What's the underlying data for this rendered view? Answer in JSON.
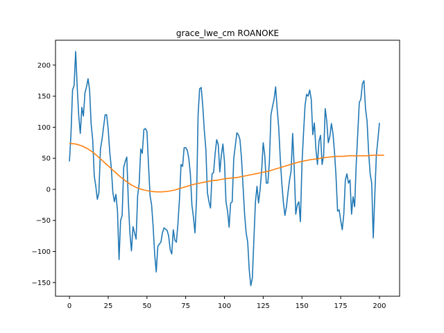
{
  "chart_data": {
    "type": "line",
    "title": "grace_lwe_cm ROANOKE",
    "xlabel": "",
    "ylabel": "",
    "xlim": [
      -9,
      213
    ],
    "ylim": [
      -172,
      240
    ],
    "xticks": [
      0,
      25,
      50,
      75,
      100,
      125,
      150,
      175,
      200
    ],
    "yticks": [
      -150,
      -100,
      -50,
      0,
      50,
      100,
      150,
      200
    ],
    "grid": false,
    "legend": "none",
    "series": [
      {
        "color": "#1f77b4",
        "points": [
          [
            0,
            45
          ],
          [
            1,
            90
          ],
          [
            2,
            160
          ],
          [
            3,
            167
          ],
          [
            4,
            222
          ],
          [
            5,
            165
          ],
          [
            6,
            118
          ],
          [
            7,
            90
          ],
          [
            8,
            132
          ],
          [
            9,
            118
          ],
          [
            10,
            155
          ],
          [
            11,
            165
          ],
          [
            12,
            178
          ],
          [
            13,
            160
          ],
          [
            14,
            105
          ],
          [
            15,
            80
          ],
          [
            16,
            22
          ],
          [
            17,
            5
          ],
          [
            18,
            -16
          ],
          [
            19,
            -5
          ],
          [
            20,
            65
          ],
          [
            21,
            80
          ],
          [
            22,
            100
          ],
          [
            23,
            120
          ],
          [
            24,
            120
          ],
          [
            25,
            97
          ],
          [
            26,
            60
          ],
          [
            27,
            35
          ],
          [
            28,
            -5
          ],
          [
            29,
            -20
          ],
          [
            30,
            -8
          ],
          [
            31,
            -35
          ],
          [
            32,
            -113
          ],
          [
            33,
            -50
          ],
          [
            34,
            -42
          ],
          [
            35,
            35
          ],
          [
            36,
            45
          ],
          [
            37,
            52
          ],
          [
            38,
            -20
          ],
          [
            39,
            -70
          ],
          [
            40,
            -99
          ],
          [
            41,
            -60
          ],
          [
            42,
            -70
          ],
          [
            43,
            -80
          ],
          [
            44,
            -10
          ],
          [
            45,
            10
          ],
          [
            46,
            65
          ],
          [
            47,
            58
          ],
          [
            48,
            96
          ],
          [
            49,
            98
          ],
          [
            50,
            93
          ],
          [
            51,
            40
          ],
          [
            52,
            -10
          ],
          [
            53,
            -25
          ],
          [
            54,
            -60
          ],
          [
            55,
            -105
          ],
          [
            56,
            -133
          ],
          [
            57,
            -92
          ],
          [
            58,
            -88
          ],
          [
            59,
            -85
          ],
          [
            60,
            -70
          ],
          [
            61,
            -62
          ],
          [
            62,
            -64
          ],
          [
            63,
            -66
          ],
          [
            64,
            -75
          ],
          [
            65,
            -97
          ],
          [
            66,
            -104
          ],
          [
            67,
            -65
          ],
          [
            68,
            -82
          ],
          [
            69,
            -85
          ],
          [
            70,
            -55
          ],
          [
            71,
            -15
          ],
          [
            72,
            40
          ],
          [
            73,
            37
          ],
          [
            74,
            67
          ],
          [
            75,
            67
          ],
          [
            76,
            63
          ],
          [
            77,
            50
          ],
          [
            78,
            25
          ],
          [
            79,
            -25
          ],
          [
            80,
            -45
          ],
          [
            81,
            -70
          ],
          [
            82,
            -15
          ],
          [
            83,
            120
          ],
          [
            84,
            162
          ],
          [
            85,
            164
          ],
          [
            86,
            135
          ],
          [
            87,
            95
          ],
          [
            88,
            65
          ],
          [
            89,
            -5
          ],
          [
            90,
            -20
          ],
          [
            91,
            -30
          ],
          [
            92,
            25
          ],
          [
            93,
            27
          ],
          [
            94,
            58
          ],
          [
            95,
            80
          ],
          [
            96,
            72
          ],
          [
            97,
            28
          ],
          [
            98,
            55
          ],
          [
            99,
            73
          ],
          [
            100,
            45
          ],
          [
            101,
            -20
          ],
          [
            102,
            -35
          ],
          [
            103,
            -61
          ],
          [
            104,
            -22
          ],
          [
            105,
            -20
          ],
          [
            106,
            50
          ],
          [
            107,
            70
          ],
          [
            108,
            91
          ],
          [
            109,
            88
          ],
          [
            110,
            80
          ],
          [
            111,
            50
          ],
          [
            112,
            5
          ],
          [
            113,
            -40
          ],
          [
            114,
            -70
          ],
          [
            115,
            -85
          ],
          [
            116,
            -130
          ],
          [
            117,
            -155
          ],
          [
            118,
            -143
          ],
          [
            119,
            -80
          ],
          [
            120,
            -20
          ],
          [
            121,
            5
          ],
          [
            122,
            -22
          ],
          [
            123,
            0
          ],
          [
            124,
            30
          ],
          [
            125,
            75
          ],
          [
            126,
            55
          ],
          [
            127,
            10
          ],
          [
            128,
            10
          ],
          [
            129,
            45
          ],
          [
            130,
            120
          ],
          [
            131,
            133
          ],
          [
            132,
            145
          ],
          [
            133,
            165
          ],
          [
            134,
            130
          ],
          [
            135,
            100
          ],
          [
            136,
            50
          ],
          [
            137,
            10
          ],
          [
            138,
            -20
          ],
          [
            139,
            -42
          ],
          [
            140,
            -28
          ],
          [
            141,
            -5
          ],
          [
            142,
            15
          ],
          [
            143,
            30
          ],
          [
            144,
            90
          ],
          [
            145,
            35
          ],
          [
            146,
            -40
          ],
          [
            147,
            -25
          ],
          [
            148,
            -20
          ],
          [
            149,
            -52
          ],
          [
            150,
            40
          ],
          [
            151,
            90
          ],
          [
            152,
            135
          ],
          [
            153,
            153
          ],
          [
            154,
            150
          ],
          [
            155,
            160
          ],
          [
            156,
            145
          ],
          [
            157,
            88
          ],
          [
            158,
            107
          ],
          [
            159,
            65
          ],
          [
            160,
            40
          ],
          [
            161,
            78
          ],
          [
            162,
            87
          ],
          [
            163,
            40
          ],
          [
            164,
            55
          ],
          [
            165,
            130
          ],
          [
            166,
            110
          ],
          [
            167,
            75
          ],
          [
            168,
            85
          ],
          [
            169,
            106
          ],
          [
            170,
            90
          ],
          [
            171,
            60
          ],
          [
            172,
            20
          ],
          [
            173,
            -35
          ],
          [
            174,
            -33
          ],
          [
            175,
            -50
          ],
          [
            176,
            -65
          ],
          [
            177,
            -40
          ],
          [
            178,
            15
          ],
          [
            179,
            25
          ],
          [
            180,
            10
          ],
          [
            181,
            15
          ],
          [
            182,
            -40
          ],
          [
            183,
            -12
          ],
          [
            184,
            -28
          ],
          [
            185,
            40
          ],
          [
            186,
            90
          ],
          [
            187,
            140
          ],
          [
            188,
            145
          ],
          [
            189,
            170
          ],
          [
            190,
            175
          ],
          [
            191,
            130
          ],
          [
            192,
            110
          ],
          [
            193,
            60
          ],
          [
            194,
            25
          ],
          [
            195,
            10
          ],
          [
            196,
            -78
          ],
          [
            197,
            -10
          ],
          [
            198,
            55
          ],
          [
            199,
            80
          ],
          [
            200,
            107
          ]
        ]
      },
      {
        "color": "#ff7f0e",
        "points": [
          [
            0,
            74
          ],
          [
            4,
            73
          ],
          [
            8,
            70
          ],
          [
            12,
            65
          ],
          [
            16,
            58
          ],
          [
            20,
            49
          ],
          [
            24,
            40
          ],
          [
            28,
            31
          ],
          [
            32,
            22
          ],
          [
            36,
            14
          ],
          [
            40,
            7
          ],
          [
            44,
            2
          ],
          [
            48,
            -1
          ],
          [
            52,
            -3
          ],
          [
            56,
            -4
          ],
          [
            60,
            -4
          ],
          [
            64,
            -3
          ],
          [
            68,
            -1
          ],
          [
            72,
            2
          ],
          [
            76,
            5
          ],
          [
            80,
            8
          ],
          [
            84,
            10
          ],
          [
            88,
            12
          ],
          [
            92,
            14
          ],
          [
            96,
            15
          ],
          [
            100,
            17
          ],
          [
            104,
            18
          ],
          [
            108,
            19
          ],
          [
            112,
            21
          ],
          [
            116,
            23
          ],
          [
            120,
            25
          ],
          [
            124,
            27
          ],
          [
            128,
            29
          ],
          [
            132,
            32
          ],
          [
            136,
            35
          ],
          [
            140,
            38
          ],
          [
            144,
            41
          ],
          [
            148,
            44
          ],
          [
            152,
            46
          ],
          [
            156,
            48
          ],
          [
            160,
            49
          ],
          [
            164,
            51
          ],
          [
            168,
            52
          ],
          [
            172,
            53
          ],
          [
            176,
            53
          ],
          [
            180,
            54
          ],
          [
            184,
            54
          ],
          [
            188,
            54
          ],
          [
            192,
            54
          ],
          [
            196,
            55
          ],
          [
            200,
            55
          ],
          [
            203,
            55
          ]
        ]
      }
    ]
  }
}
